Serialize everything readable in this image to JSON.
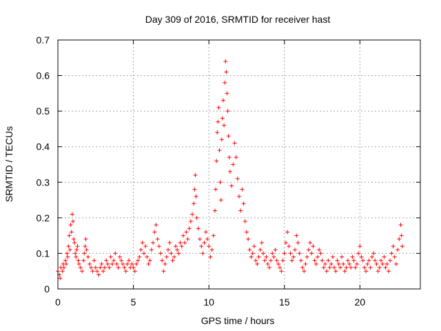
{
  "chart_data": {
    "type": "scatter",
    "title": "Day 309 of 2016, SRMTID for receiver hast",
    "xlabel": "GPS time / hours",
    "ylabel": "SRMTID / TECUs",
    "xlim": [
      0,
      24
    ],
    "ylim": [
      0,
      0.7
    ],
    "xticks": [
      0,
      5,
      10,
      15,
      20
    ],
    "yticks": [
      0,
      0.1,
      0.2,
      0.3,
      0.4,
      0.5,
      0.6,
      0.7
    ],
    "xtick_labels": [
      "0",
      "5",
      "10",
      "15",
      "20"
    ],
    "ytick_labels": [
      "0",
      "0.1",
      "0.2",
      "0.3",
      "0.4",
      "0.5",
      "0.6",
      "0.7"
    ],
    "grid": true,
    "marker": "+",
    "color": "#ff0000",
    "series": [
      {
        "name": "SRMTID",
        "points": [
          [
            0.0,
            0.05
          ],
          [
            0.1,
            0.04
          ],
          [
            0.15,
            0.03
          ],
          [
            0.2,
            0.06
          ],
          [
            0.3,
            0.05
          ],
          [
            0.35,
            0.07
          ],
          [
            0.4,
            0.06
          ],
          [
            0.5,
            0.08
          ],
          [
            0.55,
            0.07
          ],
          [
            0.6,
            0.1
          ],
          [
            0.65,
            0.09
          ],
          [
            0.7,
            0.12
          ],
          [
            0.75,
            0.15
          ],
          [
            0.8,
            0.11
          ],
          [
            0.85,
            0.18
          ],
          [
            0.9,
            0.16
          ],
          [
            0.95,
            0.21
          ],
          [
            1.0,
            0.19
          ],
          [
            1.05,
            0.14
          ],
          [
            1.1,
            0.13
          ],
          [
            1.15,
            0.1
          ],
          [
            1.2,
            0.09
          ],
          [
            1.25,
            0.11
          ],
          [
            1.3,
            0.12
          ],
          [
            1.35,
            0.08
          ],
          [
            1.4,
            0.07
          ],
          [
            1.5,
            0.06
          ],
          [
            1.6,
            0.05
          ],
          [
            1.7,
            0.08
          ],
          [
            1.75,
            0.1
          ],
          [
            1.8,
            0.12
          ],
          [
            1.85,
            0.14
          ],
          [
            1.9,
            0.11
          ],
          [
            2.0,
            0.09
          ],
          [
            2.1,
            0.07
          ],
          [
            2.2,
            0.06
          ],
          [
            2.3,
            0.05
          ],
          [
            2.4,
            0.08
          ],
          [
            2.5,
            0.06
          ],
          [
            2.6,
            0.05
          ],
          [
            2.7,
            0.04
          ],
          [
            2.8,
            0.06
          ],
          [
            2.9,
            0.07
          ],
          [
            3.0,
            0.05
          ],
          [
            3.1,
            0.06
          ],
          [
            3.2,
            0.08
          ],
          [
            3.3,
            0.07
          ],
          [
            3.4,
            0.06
          ],
          [
            3.5,
            0.09
          ],
          [
            3.6,
            0.07
          ],
          [
            3.7,
            0.08
          ],
          [
            3.8,
            0.1
          ],
          [
            3.9,
            0.07
          ],
          [
            4.0,
            0.06
          ],
          [
            4.1,
            0.09
          ],
          [
            4.2,
            0.08
          ],
          [
            4.3,
            0.07
          ],
          [
            4.4,
            0.06
          ],
          [
            4.5,
            0.05
          ],
          [
            4.6,
            0.07
          ],
          [
            4.7,
            0.08
          ],
          [
            4.8,
            0.06
          ],
          [
            4.9,
            0.07
          ],
          [
            5.0,
            0.06
          ],
          [
            5.1,
            0.05
          ],
          [
            5.2,
            0.07
          ],
          [
            5.3,
            0.08
          ],
          [
            5.4,
            0.09
          ],
          [
            5.5,
            0.11
          ],
          [
            5.6,
            0.13
          ],
          [
            5.7,
            0.1
          ],
          [
            5.8,
            0.12
          ],
          [
            5.9,
            0.09
          ],
          [
            6.0,
            0.07
          ],
          [
            6.1,
            0.08
          ],
          [
            6.2,
            0.11
          ],
          [
            6.3,
            0.13
          ],
          [
            6.4,
            0.16
          ],
          [
            6.5,
            0.18
          ],
          [
            6.6,
            0.14
          ],
          [
            6.7,
            0.12
          ],
          [
            6.8,
            0.1
          ],
          [
            6.9,
            0.08
          ],
          [
            7.0,
            0.05
          ],
          [
            7.1,
            0.07
          ],
          [
            7.2,
            0.09
          ],
          [
            7.3,
            0.11
          ],
          [
            7.4,
            0.13
          ],
          [
            7.5,
            0.1
          ],
          [
            7.6,
            0.08
          ],
          [
            7.7,
            0.09
          ],
          [
            7.8,
            0.12
          ],
          [
            7.9,
            0.11
          ],
          [
            8.0,
            0.1
          ],
          [
            8.1,
            0.13
          ],
          [
            8.2,
            0.12
          ],
          [
            8.3,
            0.15
          ],
          [
            8.4,
            0.13
          ],
          [
            8.5,
            0.16
          ],
          [
            8.6,
            0.14
          ],
          [
            8.7,
            0.17
          ],
          [
            8.8,
            0.19
          ],
          [
            8.9,
            0.21
          ],
          [
            9.0,
            0.24
          ],
          [
            9.05,
            0.28
          ],
          [
            9.1,
            0.32
          ],
          [
            9.15,
            0.26
          ],
          [
            9.2,
            0.2
          ],
          [
            9.3,
            0.17
          ],
          [
            9.4,
            0.14
          ],
          [
            9.5,
            0.12
          ],
          [
            9.6,
            0.1
          ],
          [
            9.7,
            0.13
          ],
          [
            9.8,
            0.16
          ],
          [
            9.9,
            0.14
          ],
          [
            10.0,
            0.12
          ],
          [
            10.1,
            0.09
          ],
          [
            10.2,
            0.11
          ],
          [
            10.3,
            0.15
          ],
          [
            10.4,
            0.22
          ],
          [
            10.45,
            0.28
          ],
          [
            10.5,
            0.36
          ],
          [
            10.55,
            0.44
          ],
          [
            10.6,
            0.47
          ],
          [
            10.65,
            0.51
          ],
          [
            10.7,
            0.39
          ],
          [
            10.75,
            0.3
          ],
          [
            10.8,
            0.25
          ],
          [
            10.85,
            0.42
          ],
          [
            10.9,
            0.48
          ],
          [
            10.95,
            0.53
          ],
          [
            11.0,
            0.46
          ],
          [
            11.05,
            0.58
          ],
          [
            11.1,
            0.64
          ],
          [
            11.15,
            0.61
          ],
          [
            11.2,
            0.55
          ],
          [
            11.25,
            0.5
          ],
          [
            11.3,
            0.43
          ],
          [
            11.35,
            0.37
          ],
          [
            11.4,
            0.33
          ],
          [
            11.5,
            0.29
          ],
          [
            11.6,
            0.35
          ],
          [
            11.7,
            0.41
          ],
          [
            11.8,
            0.37
          ],
          [
            11.9,
            0.31
          ],
          [
            12.0,
            0.26
          ],
          [
            12.1,
            0.22
          ],
          [
            12.2,
            0.28
          ],
          [
            12.3,
            0.24
          ],
          [
            12.4,
            0.19
          ],
          [
            12.5,
            0.16
          ],
          [
            12.6,
            0.14
          ],
          [
            12.7,
            0.11
          ],
          [
            12.8,
            0.09
          ],
          [
            12.9,
            0.1
          ],
          [
            13.0,
            0.12
          ],
          [
            13.1,
            0.08
          ],
          [
            13.2,
            0.07
          ],
          [
            13.3,
            0.09
          ],
          [
            13.4,
            0.11
          ],
          [
            13.5,
            0.13
          ],
          [
            13.6,
            0.1
          ],
          [
            13.7,
            0.08
          ],
          [
            13.8,
            0.09
          ],
          [
            13.9,
            0.07
          ],
          [
            14.0,
            0.06
          ],
          [
            14.1,
            0.08
          ],
          [
            14.2,
            0.1
          ],
          [
            14.3,
            0.09
          ],
          [
            14.4,
            0.11
          ],
          [
            14.5,
            0.08
          ],
          [
            14.6,
            0.07
          ],
          [
            14.7,
            0.06
          ],
          [
            14.8,
            0.05
          ],
          [
            14.9,
            0.08
          ],
          [
            15.0,
            0.1
          ],
          [
            15.1,
            0.13
          ],
          [
            15.2,
            0.16
          ],
          [
            15.3,
            0.12
          ],
          [
            15.4,
            0.1
          ],
          [
            15.5,
            0.08
          ],
          [
            15.6,
            0.09
          ],
          [
            15.7,
            0.11
          ],
          [
            15.8,
            0.15
          ],
          [
            15.9,
            0.13
          ],
          [
            16.0,
            0.1
          ],
          [
            16.1,
            0.08
          ],
          [
            16.2,
            0.06
          ],
          [
            16.3,
            0.05
          ],
          [
            16.4,
            0.07
          ],
          [
            16.5,
            0.09
          ],
          [
            16.6,
            0.11
          ],
          [
            16.7,
            0.13
          ],
          [
            16.8,
            0.1
          ],
          [
            16.9,
            0.12
          ],
          [
            17.0,
            0.08
          ],
          [
            17.1,
            0.07
          ],
          [
            17.2,
            0.09
          ],
          [
            17.3,
            0.11
          ],
          [
            17.4,
            0.1
          ],
          [
            17.5,
            0.08
          ],
          [
            17.6,
            0.06
          ],
          [
            17.7,
            0.07
          ],
          [
            17.8,
            0.05
          ],
          [
            17.9,
            0.08
          ],
          [
            18.0,
            0.06
          ],
          [
            18.1,
            0.07
          ],
          [
            18.2,
            0.09
          ],
          [
            18.3,
            0.06
          ],
          [
            18.4,
            0.05
          ],
          [
            18.5,
            0.08
          ],
          [
            18.6,
            0.07
          ],
          [
            18.7,
            0.06
          ],
          [
            18.8,
            0.09
          ],
          [
            18.9,
            0.07
          ],
          [
            19.0,
            0.05
          ],
          [
            19.1,
            0.06
          ],
          [
            19.2,
            0.08
          ],
          [
            19.3,
            0.07
          ],
          [
            19.4,
            0.06
          ],
          [
            19.5,
            0.09
          ],
          [
            19.6,
            0.08
          ],
          [
            19.7,
            0.06
          ],
          [
            19.8,
            0.07
          ],
          [
            19.9,
            0.1
          ],
          [
            20.0,
            0.12
          ],
          [
            20.1,
            0.09
          ],
          [
            20.2,
            0.08
          ],
          [
            20.3,
            0.06
          ],
          [
            20.4,
            0.05
          ],
          [
            20.5,
            0.07
          ],
          [
            20.6,
            0.08
          ],
          [
            20.7,
            0.06
          ],
          [
            20.8,
            0.09
          ],
          [
            20.9,
            0.1
          ],
          [
            21.0,
            0.08
          ],
          [
            21.1,
            0.07
          ],
          [
            21.2,
            0.05
          ],
          [
            21.3,
            0.06
          ],
          [
            21.4,
            0.08
          ],
          [
            21.5,
            0.07
          ],
          [
            21.6,
            0.09
          ],
          [
            21.7,
            0.06
          ],
          [
            21.8,
            0.07
          ],
          [
            21.9,
            0.05
          ],
          [
            22.0,
            0.08
          ],
          [
            22.1,
            0.1
          ],
          [
            22.2,
            0.12
          ],
          [
            22.3,
            0.09
          ],
          [
            22.4,
            0.07
          ],
          [
            22.5,
            0.11
          ],
          [
            22.6,
            0.14
          ],
          [
            22.7,
            0.18
          ],
          [
            22.75,
            0.15
          ],
          [
            22.8,
            0.12
          ]
        ]
      }
    ]
  }
}
